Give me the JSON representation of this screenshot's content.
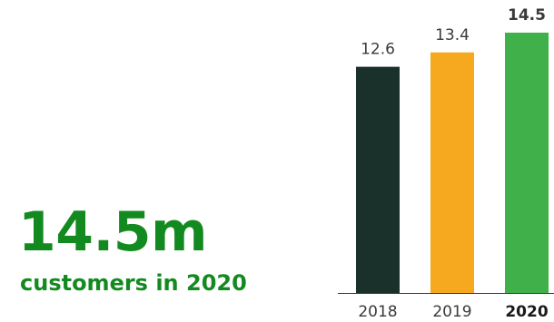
{
  "headline": {
    "value": "14.5m",
    "caption": "customers in 2020"
  },
  "chart_data": {
    "type": "bar",
    "title": "",
    "xlabel": "",
    "ylabel": "",
    "categories": [
      "2018",
      "2019",
      "2020"
    ],
    "values": [
      12.6,
      13.4,
      14.5
    ],
    "value_labels": [
      "12.6",
      "13.4",
      "14.5"
    ],
    "highlight_category": "2020",
    "bar_colors": [
      "#1a302a",
      "#f6a91e",
      "#3fb04a"
    ],
    "ylim": [
      0,
      14.5
    ],
    "grid": false,
    "legend": "none"
  }
}
